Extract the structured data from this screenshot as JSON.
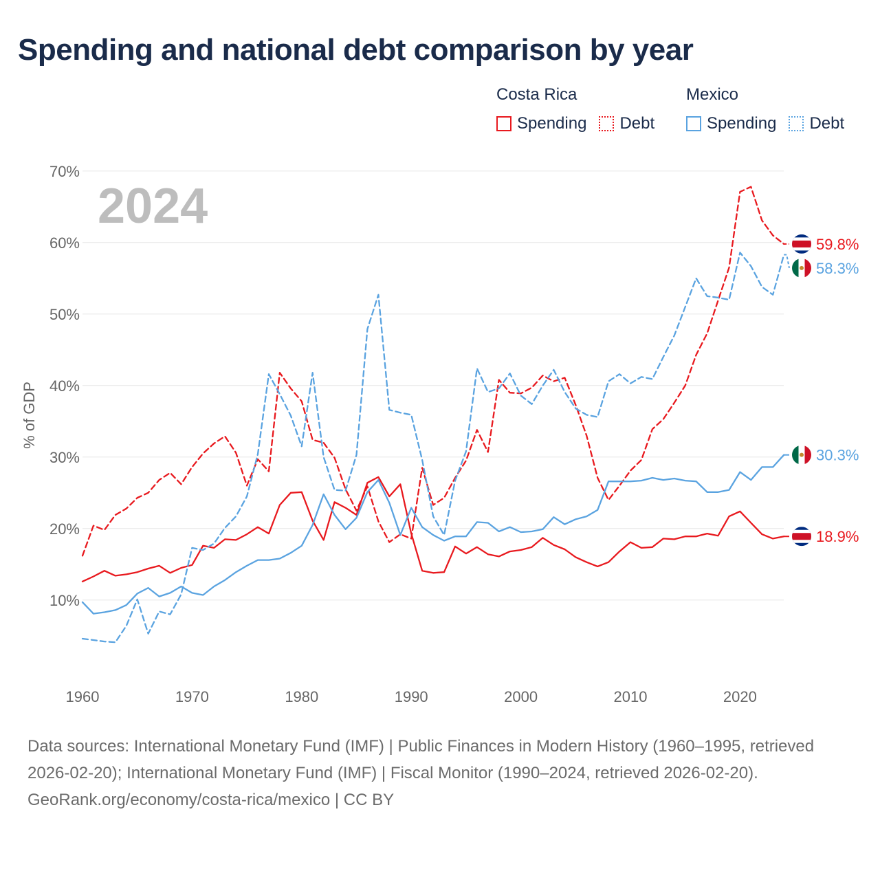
{
  "title": "Spending and national debt comparison by year",
  "legend": {
    "groups": [
      {
        "country": "Costa Rica",
        "color": "#e8191e",
        "items": [
          {
            "label": "Spending",
            "style": "solid"
          },
          {
            "label": "Debt",
            "style": "dotted"
          }
        ]
      },
      {
        "country": "Mexico",
        "color": "#5aa3e0",
        "items": [
          {
            "label": "Spending",
            "style": "solid"
          },
          {
            "label": "Debt",
            "style": "dotted"
          }
        ]
      }
    ]
  },
  "chart_data": {
    "type": "line",
    "year_label": "2024",
    "ylabel": "% of GDP",
    "xlim": [
      1960,
      2024
    ],
    "ylim": [
      0,
      70
    ],
    "x_ticks": [
      1960,
      1970,
      1980,
      1990,
      2000,
      2010,
      2020
    ],
    "x_tick_labels": [
      "1960",
      "1970",
      "1980",
      "1990",
      "2000",
      "2010",
      "2020"
    ],
    "y_ticks": [
      10,
      20,
      30,
      40,
      50,
      60,
      70
    ],
    "y_tick_labels": [
      "10%",
      "20%",
      "30%",
      "40%",
      "50%",
      "60%",
      "70%"
    ],
    "series": [
      {
        "name": "Costa Rica Spending",
        "country": "Costa Rica",
        "metric": "Spending",
        "color": "#e8191e",
        "dash": "solid",
        "start_year": 1960,
        "end_label": "18.9%",
        "end_value": 18.9,
        "flag": "costa-rica",
        "values": [
          12.6,
          13.3,
          14.1,
          13.4,
          13.6,
          13.9,
          14.4,
          14.8,
          13.8,
          14.5,
          14.9,
          17.6,
          17.3,
          18.5,
          18.4,
          19.2,
          20.2,
          19.3,
          23.3,
          25.0,
          25.1,
          21.1,
          18.4,
          23.7,
          22.9,
          21.9,
          26.4,
          27.2,
          24.5,
          26.2,
          19.3,
          14.1,
          13.8,
          13.9,
          17.5,
          16.5,
          17.4,
          16.4,
          16.1,
          16.8,
          17.0,
          17.4,
          18.7,
          17.7,
          17.1,
          16.0,
          15.3,
          14.7,
          15.3,
          16.8,
          18.1,
          17.3,
          17.4,
          18.6,
          18.5,
          18.9,
          18.9,
          19.3,
          19.0,
          21.7,
          22.4,
          20.8,
          19.2,
          18.6,
          18.9
        ]
      },
      {
        "name": "Costa Rica Debt",
        "country": "Costa Rica",
        "metric": "Debt",
        "color": "#e8191e",
        "dash": "dashed",
        "start_year": 1960,
        "end_label": "59.8%",
        "end_value": 59.8,
        "flag": "costa-rica",
        "values": [
          16.2,
          20.4,
          19.8,
          21.9,
          22.8,
          24.3,
          25.0,
          26.8,
          27.8,
          26.2,
          28.6,
          30.5,
          31.9,
          32.9,
          30.6,
          26.0,
          29.7,
          28.0,
          41.8,
          39.6,
          37.8,
          32.4,
          32.0,
          29.9,
          25.5,
          22.5,
          25.9,
          21.0,
          18.1,
          19.2,
          18.6,
          28.5,
          23.3,
          24.3,
          27.1,
          29.5,
          33.8,
          30.7,
          40.8,
          39.0,
          38.9,
          39.7,
          41.4,
          40.6,
          41.1,
          37.3,
          33.0,
          27.1,
          24.0,
          26.0,
          28.1,
          29.6,
          33.9,
          35.3,
          37.6,
          40.0,
          44.3,
          47.3,
          51.9,
          56.5,
          67.1,
          67.8,
          63.1,
          61.0,
          59.8
        ]
      },
      {
        "name": "Mexico Spending",
        "country": "Mexico",
        "metric": "Spending",
        "color": "#5aa3e0",
        "dash": "solid",
        "start_year": 1960,
        "end_label": "30.3%",
        "end_value": 30.3,
        "flag": "mexico",
        "values": [
          9.7,
          8.1,
          8.3,
          8.6,
          9.3,
          10.9,
          11.7,
          10.5,
          11.0,
          11.9,
          11.0,
          10.7,
          11.9,
          12.8,
          13.9,
          14.8,
          15.6,
          15.6,
          15.8,
          16.6,
          17.6,
          20.5,
          24.8,
          21.9,
          19.9,
          21.5,
          25.1,
          26.8,
          23.6,
          19.1,
          22.9,
          20.2,
          19.1,
          18.3,
          18.9,
          18.9,
          20.9,
          20.8,
          19.6,
          20.2,
          19.5,
          19.6,
          19.9,
          21.6,
          20.6,
          21.3,
          21.7,
          22.6,
          26.6,
          26.6,
          26.6,
          26.7,
          27.1,
          26.8,
          27.0,
          26.7,
          26.6,
          25.1,
          25.1,
          25.4,
          27.9,
          26.8,
          28.6,
          28.6,
          30.3
        ]
      },
      {
        "name": "Mexico Debt",
        "country": "Mexico",
        "metric": "Debt",
        "color": "#5aa3e0",
        "dash": "dashed",
        "start_year": 1960,
        "end_label": "58.3%",
        "end_value": 58.3,
        "flag": "mexico",
        "values": [
          4.6,
          4.4,
          4.2,
          4.1,
          6.4,
          10.1,
          5.3,
          8.4,
          8.0,
          10.8,
          17.3,
          17.0,
          17.9,
          20.1,
          21.7,
          24.5,
          30.4,
          41.6,
          38.8,
          35.8,
          31.5,
          41.8,
          30.0,
          25.4,
          25.3,
          30.3,
          47.9,
          52.7,
          36.6,
          36.2,
          35.9,
          29.6,
          21.7,
          19.1,
          26.7,
          30.8,
          42.4,
          39.1,
          39.6,
          41.7,
          38.6,
          37.4,
          40.0,
          42.2,
          39.1,
          36.8,
          35.9,
          35.6,
          40.6,
          41.6,
          40.3,
          41.2,
          40.9,
          44.0,
          47.0,
          51.0,
          55.0,
          52.5,
          52.3,
          52.0,
          58.6,
          56.7,
          53.8,
          52.7,
          58.3
        ]
      }
    ]
  },
  "footer": {
    "sources": "Data sources: International Monetary Fund (IMF) | Public Finances in Modern History (1960–1995, retrieved 2026-02-20); International Monetary Fund (IMF) | Fiscal Monitor (1990–2024, retrieved 2026-02-20).",
    "attribution": "GeoRank.org/economy/costa-rica/mexico | CC BY"
  }
}
